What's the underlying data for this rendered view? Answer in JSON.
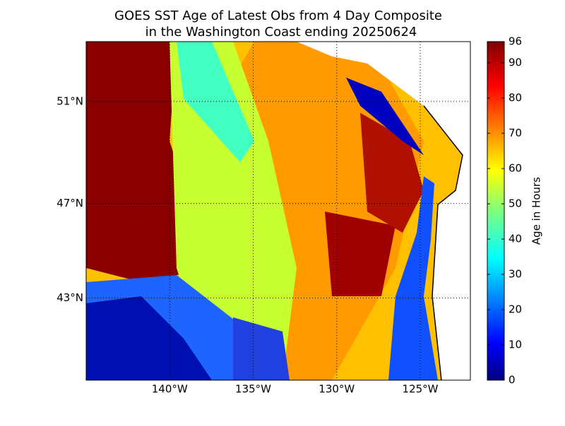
{
  "chart_data": {
    "type": "map",
    "projection": "mercator",
    "title": "GOES SST Age of Latest Obs from 4 Day Composite",
    "subtitle": "in the Washington Coast ending 20250624",
    "xlim": [
      -145,
      -122
    ],
    "ylim": [
      39.3,
      53.2
    ],
    "xticks": [
      {
        "value": -140,
        "label": "140°W"
      },
      {
        "value": -135,
        "label": "135°W"
      },
      {
        "value": -130,
        "label": "130°W"
      },
      {
        "value": -125,
        "label": "125°W"
      }
    ],
    "yticks": [
      {
        "value": 43,
        "label": "43°N"
      },
      {
        "value": 47,
        "label": "47°N"
      },
      {
        "value": 51,
        "label": "51°N"
      }
    ],
    "grid": true,
    "colorbar": {
      "label": "Age in Hours",
      "lim": [
        0,
        96
      ],
      "ticks": [
        0,
        10,
        20,
        30,
        40,
        50,
        60,
        70,
        80,
        90,
        96
      ],
      "colormap": "jet"
    }
  }
}
